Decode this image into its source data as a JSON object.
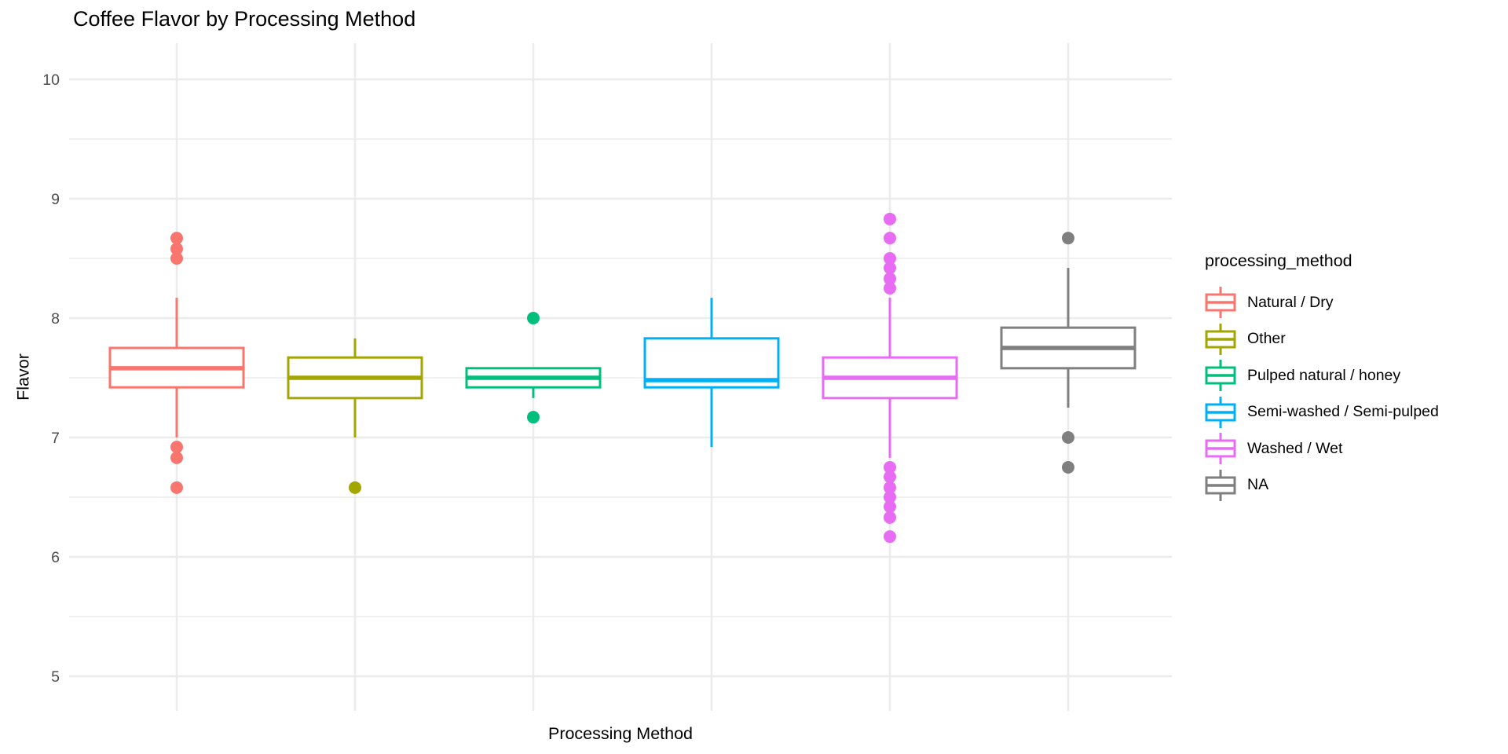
{
  "title": "Coffee Flavor by Processing Method",
  "colors": {
    "background": "#FFFFFF",
    "grid": "#EBEBEB",
    "tick_label": "#4D4D4D",
    "text": "#000000",
    "box_fill": "#FFFFFF"
  },
  "chart_data": {
    "type": "boxplot",
    "title": "Coffee Flavor by Processing Method",
    "xlabel": "Processing Method",
    "ylabel": "Flavor",
    "ylim": [
      5,
      10
    ],
    "y_major_ticks": [
      10,
      9,
      8,
      7,
      6,
      5
    ],
    "y_minor_ticks": [
      9.5,
      8.5,
      7.5,
      6.5,
      5.5
    ],
    "x_tick_labels_shown": false,
    "grid": "horizontal major+minor, vertical line per category",
    "legend_position": "right",
    "legend_title": "processing_method",
    "categories": [
      "Natural / Dry",
      "Other",
      "Pulped natural / honey",
      "Semi-washed / Semi-pulped",
      "Washed / Wet",
      "NA"
    ],
    "series": [
      {
        "name": "Natural / Dry",
        "color": "#F8766D",
        "whisker_low": 7.0,
        "q1": 7.42,
        "median": 7.58,
        "q3": 7.75,
        "whisker_high": 8.17,
        "outliers": [
          8.67,
          8.58,
          8.5,
          6.92,
          6.83,
          6.58
        ]
      },
      {
        "name": "Other",
        "color": "#A3A500",
        "whisker_low": 7.0,
        "q1": 7.33,
        "median": 7.5,
        "q3": 7.67,
        "whisker_high": 7.83,
        "outliers": [
          6.58
        ]
      },
      {
        "name": "Pulped natural / honey",
        "color": "#00BF7D",
        "whisker_low": 7.33,
        "q1": 7.42,
        "median": 7.5,
        "q3": 7.58,
        "whisker_high": 7.58,
        "outliers": [
          8.0,
          7.17
        ]
      },
      {
        "name": "Semi-washed / Semi-pulped",
        "color": "#00B0F6",
        "whisker_low": 6.92,
        "q1": 7.42,
        "median": 7.48,
        "q3": 7.83,
        "whisker_high": 8.17,
        "outliers": []
      },
      {
        "name": "Washed / Wet",
        "color": "#E76BF3",
        "whisker_low": 6.83,
        "q1": 7.33,
        "median": 7.5,
        "q3": 7.67,
        "whisker_high": 8.17,
        "outliers": [
          8.83,
          8.67,
          8.5,
          8.42,
          8.33,
          8.25,
          6.75,
          6.67,
          6.58,
          6.5,
          6.42,
          6.33,
          6.17
        ]
      },
      {
        "name": "NA",
        "color": "#7F7F7F",
        "whisker_low": 7.25,
        "q1": 7.58,
        "median": 7.75,
        "q3": 7.92,
        "whisker_high": 8.42,
        "outliers": [
          8.67,
          7.0,
          6.75
        ]
      }
    ]
  }
}
